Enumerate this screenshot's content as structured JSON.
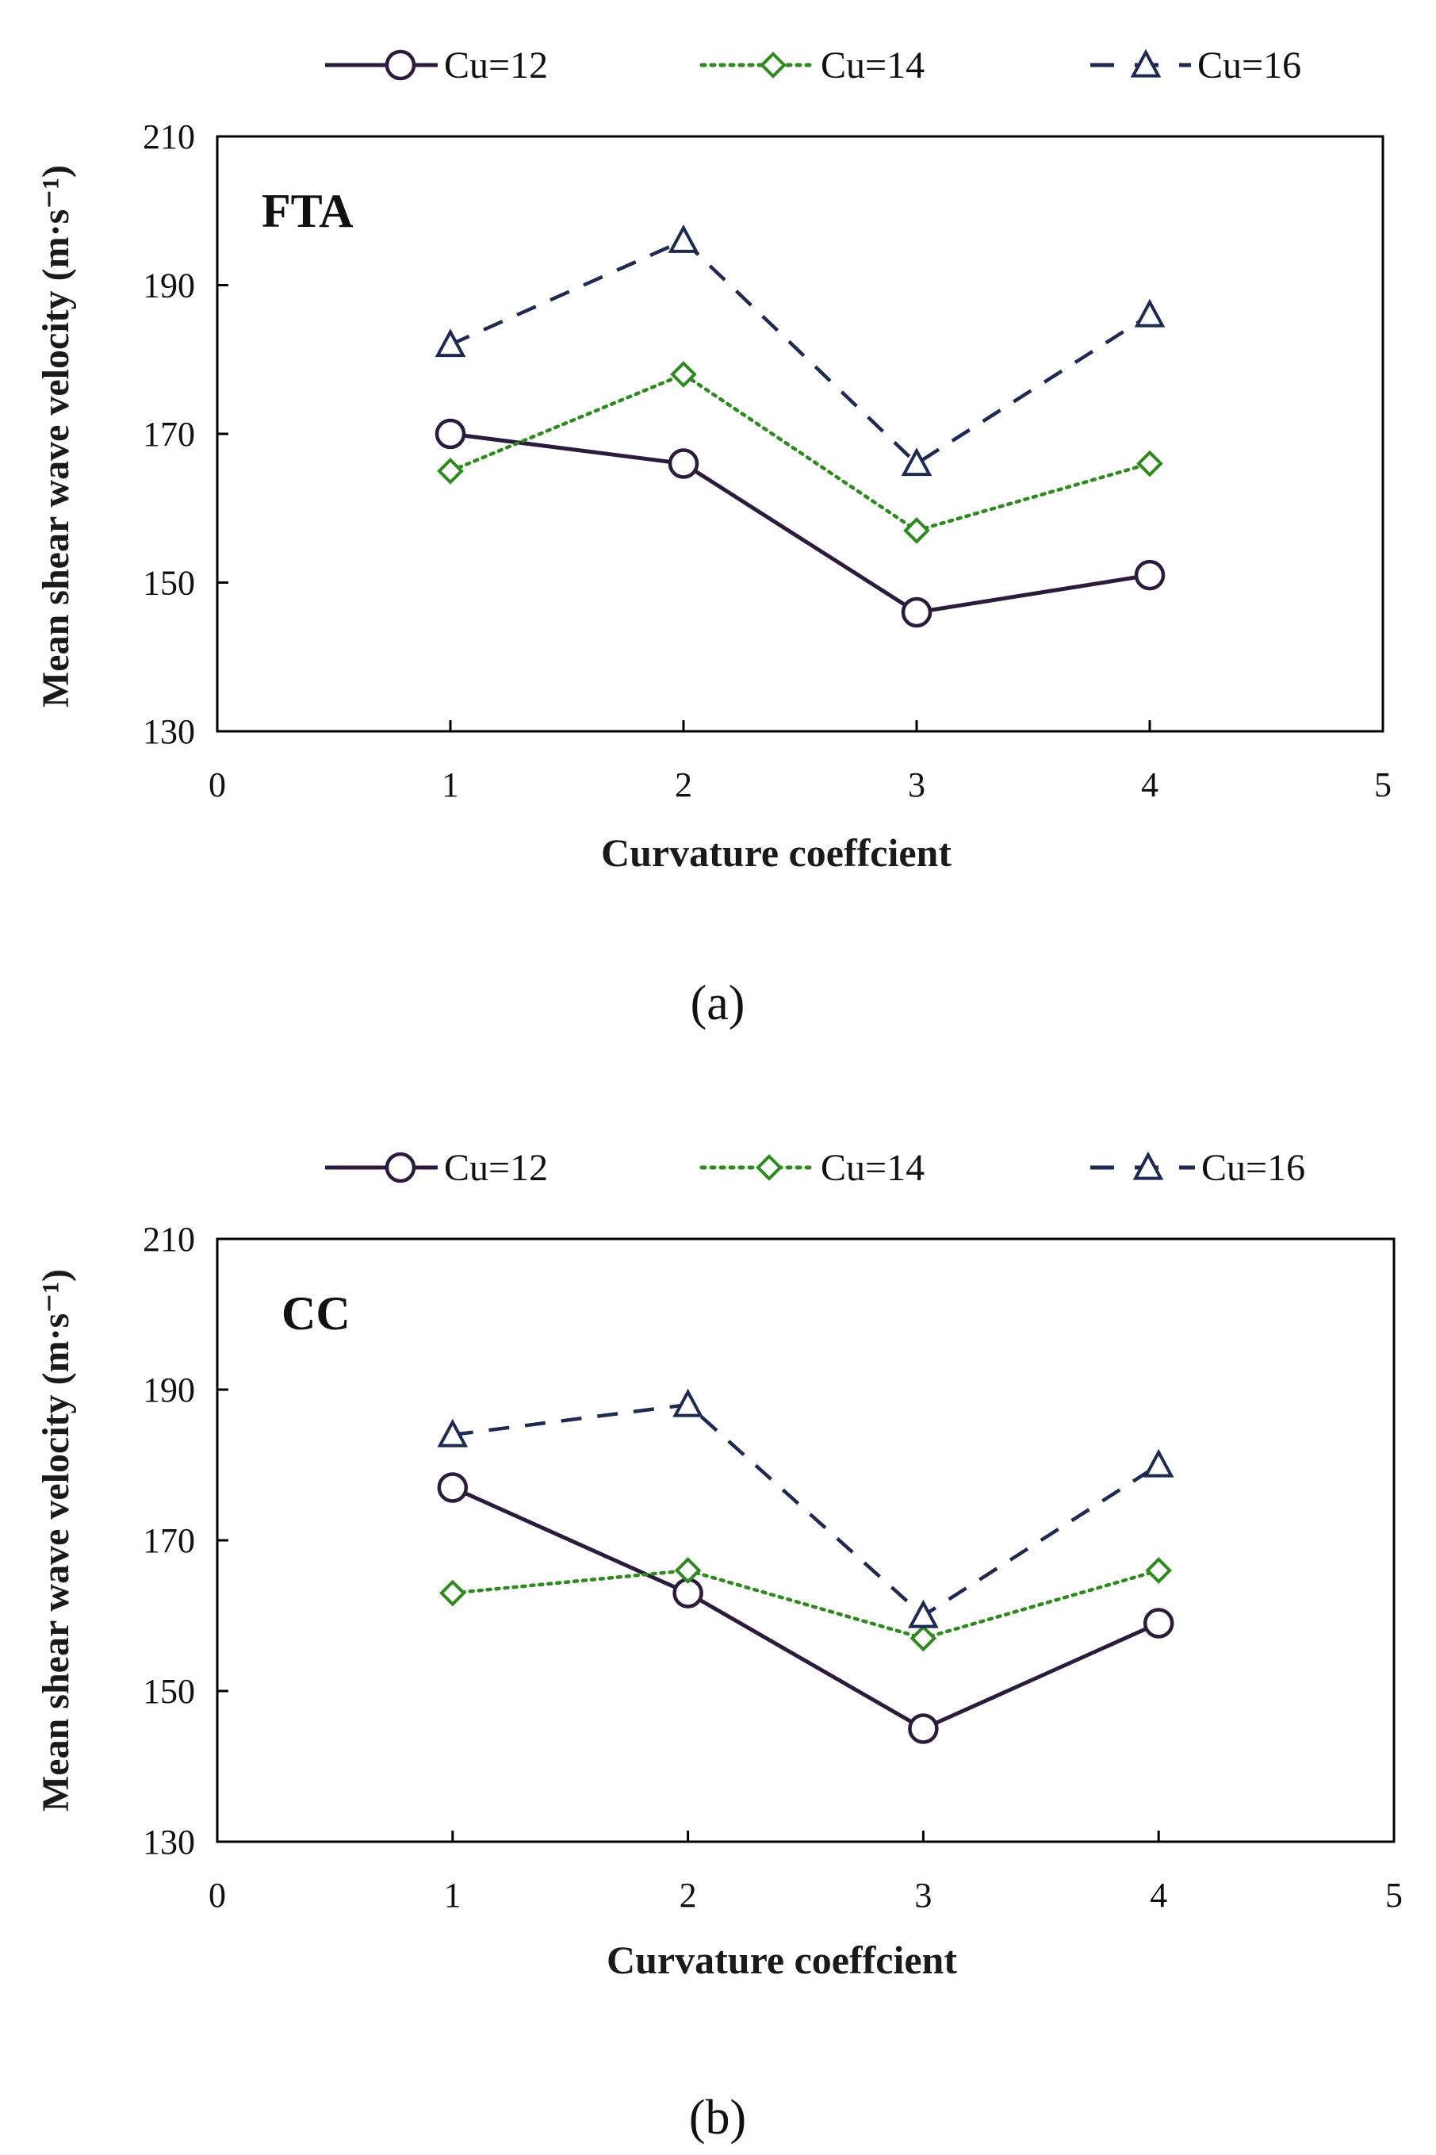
{
  "chart_data": [
    {
      "type": "line",
      "panel_label": "(a)",
      "inset_label": "FTA",
      "xlabel": "Curvature coeffcient",
      "ylabel": "Mean shear wave velocity (m·s⁻¹)",
      "xlim": [
        0,
        5
      ],
      "ylim": [
        130,
        210
      ],
      "xticks": [
        "0",
        "1",
        "2",
        "3",
        "4",
        "5"
      ],
      "yticks": [
        "130",
        "150",
        "170",
        "190",
        "210"
      ],
      "x": [
        1,
        2,
        3,
        4
      ],
      "series": [
        {
          "name": "Cu=12",
          "marker": "circle",
          "dash": "solid",
          "values": [
            170,
            166,
            146,
            151
          ]
        },
        {
          "name": "Cu=14",
          "marker": "diamond",
          "dash": "dotted",
          "values": [
            165,
            178,
            157,
            166
          ]
        },
        {
          "name": "Cu=16",
          "marker": "triangle",
          "dash": "dashed",
          "values": [
            182,
            196,
            166,
            186
          ]
        }
      ]
    },
    {
      "type": "line",
      "panel_label": "(b)",
      "inset_label": "CC",
      "xlabel": "Curvature coeffcient",
      "ylabel": "Mean shear wave velocity (m·s⁻¹)",
      "xlim": [
        0,
        5
      ],
      "ylim": [
        130,
        210
      ],
      "xticks": [
        "0",
        "1",
        "2",
        "3",
        "4",
        "5"
      ],
      "yticks": [
        "130",
        "150",
        "170",
        "190",
        "210"
      ],
      "x": [
        1,
        2,
        3,
        4
      ],
      "series": [
        {
          "name": "Cu=12",
          "marker": "circle",
          "dash": "solid",
          "values": [
            177,
            163,
            145,
            159
          ]
        },
        {
          "name": "Cu=14",
          "marker": "diamond",
          "dash": "dotted",
          "values": [
            163,
            166,
            157,
            166
          ]
        },
        {
          "name": "Cu=16",
          "marker": "triangle",
          "dash": "dashed",
          "values": [
            184,
            188,
            160,
            180
          ]
        }
      ]
    }
  ],
  "colors": {
    "Cu=12": "#2d1b3d",
    "Cu=14": "#2e8a1e",
    "Cu=16": "#1f2a52",
    "Cu=14_fill": "#8fc24a",
    "Cu=16_fill": "#3f6fc4",
    "frame": "#000000"
  }
}
